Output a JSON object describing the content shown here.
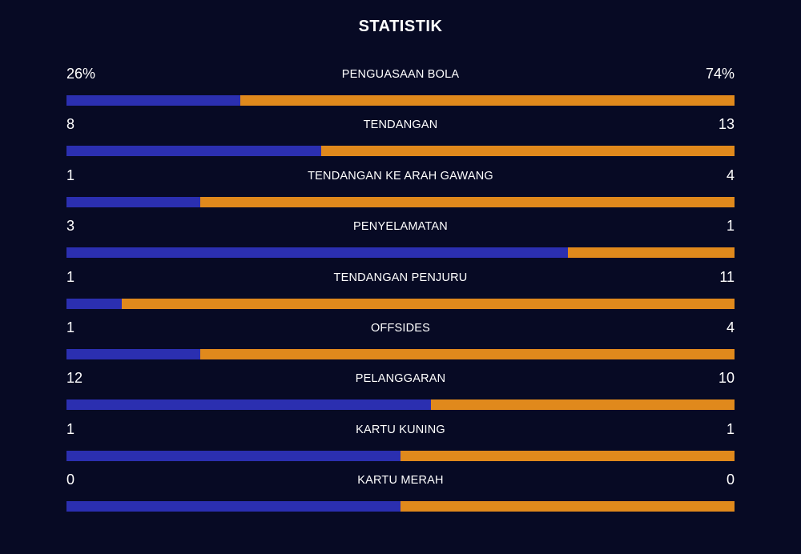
{
  "title": "STATISTIK",
  "colors": {
    "background": "#070a24",
    "home": "#2b2fb0",
    "away": "#e0891c"
  },
  "stats": [
    {
      "label": "PENGUASAAN BOLA",
      "home": "26%",
      "away": "74%",
      "home_share": 0.26
    },
    {
      "label": "TENDANGAN",
      "home": "8",
      "away": "13",
      "home_share": 0.381
    },
    {
      "label": "TENDANGAN KE ARAH GAWANG",
      "home": "1",
      "away": "4",
      "home_share": 0.2
    },
    {
      "label": "PENYELAMATAN",
      "home": "3",
      "away": "1",
      "home_share": 0.75
    },
    {
      "label": "TENDANGAN PENJURU",
      "home": "1",
      "away": "11",
      "home_share": 0.083
    },
    {
      "label": "OFFSIDES",
      "home": "1",
      "away": "4",
      "home_share": 0.2
    },
    {
      "label": "PELANGGARAN",
      "home": "12",
      "away": "10",
      "home_share": 0.545
    },
    {
      "label": "KARTU KUNING",
      "home": "1",
      "away": "1",
      "home_share": 0.5
    },
    {
      "label": "KARTU MERAH",
      "home": "0",
      "away": "0",
      "home_share": 0.5
    }
  ]
}
